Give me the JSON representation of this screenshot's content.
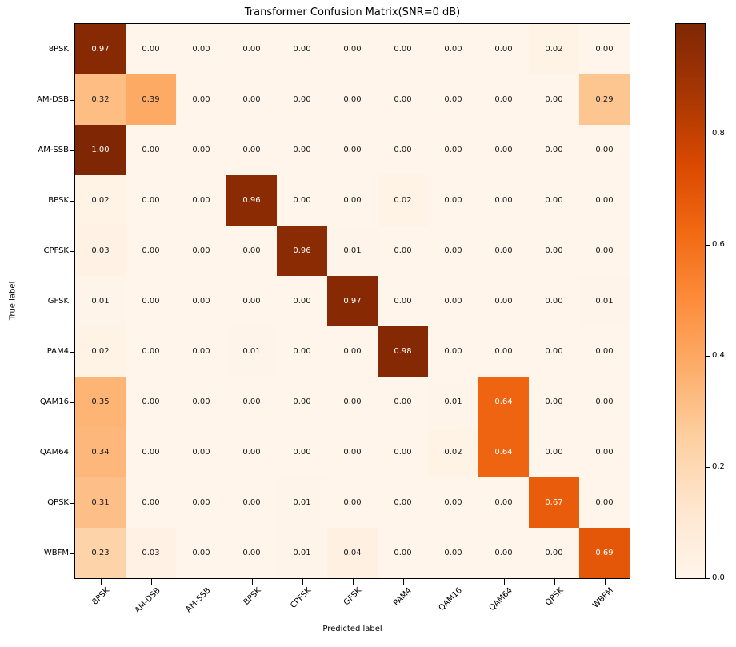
{
  "chart_data": {
    "type": "heatmap",
    "title": "Transformer Confusion Matrix(SNR=0 dB)",
    "xlabel": "Predicted label",
    "ylabel": "True label",
    "classes": [
      "8PSK",
      "AM-DSB",
      "AM-SSB",
      "BPSK",
      "CPFSK",
      "GFSK",
      "PAM4",
      "QAM16",
      "QAM64",
      "QPSK",
      "WBFM"
    ],
    "matrix": [
      [
        0.97,
        0.0,
        0.0,
        0.0,
        0.0,
        0.0,
        0.0,
        0.0,
        0.0,
        0.02,
        0.0
      ],
      [
        0.32,
        0.39,
        0.0,
        0.0,
        0.0,
        0.0,
        0.0,
        0.0,
        0.0,
        0.0,
        0.29
      ],
      [
        1.0,
        0.0,
        0.0,
        0.0,
        0.0,
        0.0,
        0.0,
        0.0,
        0.0,
        0.0,
        0.0
      ],
      [
        0.02,
        0.0,
        0.0,
        0.96,
        0.0,
        0.0,
        0.02,
        0.0,
        0.0,
        0.0,
        0.0
      ],
      [
        0.03,
        0.0,
        0.0,
        0.0,
        0.96,
        0.01,
        0.0,
        0.0,
        0.0,
        0.0,
        0.0
      ],
      [
        0.01,
        0.0,
        0.0,
        0.0,
        0.0,
        0.97,
        0.0,
        0.0,
        0.0,
        0.0,
        0.01
      ],
      [
        0.02,
        0.0,
        0.0,
        0.01,
        0.0,
        0.0,
        0.98,
        0.0,
        0.0,
        0.0,
        0.0
      ],
      [
        0.35,
        0.0,
        0.0,
        0.0,
        0.0,
        0.0,
        0.0,
        0.01,
        0.64,
        0.0,
        0.0
      ],
      [
        0.34,
        0.0,
        0.0,
        0.0,
        0.0,
        0.0,
        0.0,
        0.02,
        0.64,
        0.0,
        0.0
      ],
      [
        0.31,
        0.0,
        0.0,
        0.0,
        0.01,
        0.0,
        0.0,
        0.0,
        0.0,
        0.67,
        0.0
      ],
      [
        0.23,
        0.03,
        0.0,
        0.0,
        0.01,
        0.04,
        0.0,
        0.0,
        0.0,
        0.0,
        0.69
      ]
    ],
    "value_format_decimals": 2,
    "vmax": 0.9965,
    "colormap": {
      "name": "Oranges",
      "stops": [
        [
          0.0,
          "#fff5eb"
        ],
        [
          0.125,
          "#fee6ce"
        ],
        [
          0.25,
          "#fdd0a2"
        ],
        [
          0.375,
          "#fdae6b"
        ],
        [
          0.5,
          "#fd8d3c"
        ],
        [
          0.625,
          "#f16913"
        ],
        [
          0.75,
          "#d94801"
        ],
        [
          0.875,
          "#a63603"
        ],
        [
          1.0,
          "#7f2704"
        ]
      ]
    },
    "cell_text_dark": "#1a1a1a",
    "cell_text_light": "#ffffff",
    "colorbar_ticks": [
      0.8,
      0.6,
      0.4,
      0.2,
      0.0
    ],
    "legend_position": "right-colorbar",
    "grid": false,
    "xlim": null,
    "ylim": null
  }
}
